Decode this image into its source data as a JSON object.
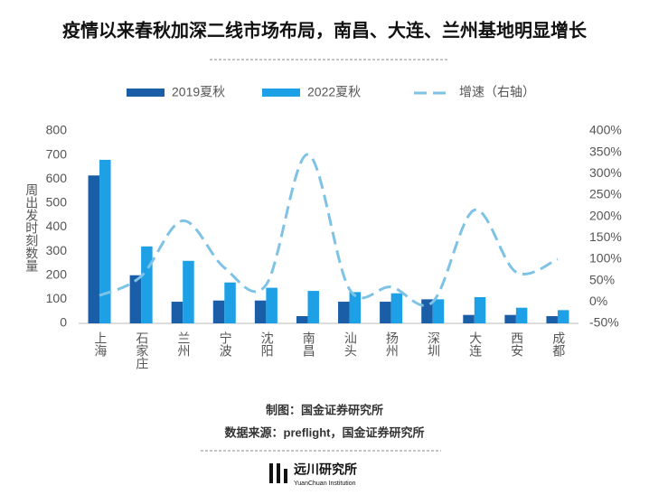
{
  "chart_data": {
    "type": "bar",
    "title": "疫情以来春秋加深二线市场布局，南昌、大连、兰州基地明显增长",
    "y_label": "周出发时刻数量",
    "categories": [
      "上海",
      "石家庄",
      "兰州",
      "宁波",
      "沈阳",
      "南昌",
      "汕头",
      "扬州",
      "深圳",
      "大连",
      "西安",
      "成都"
    ],
    "series": [
      {
        "name": "2019夏秋",
        "type": "bar",
        "color": "#1a5ea8",
        "values": [
          615,
          200,
          90,
          95,
          95,
          30,
          90,
          90,
          100,
          35,
          35,
          30
        ]
      },
      {
        "name": "2022夏秋",
        "type": "bar",
        "color": "#1ea0e6",
        "values": [
          680,
          320,
          260,
          170,
          148,
          135,
          130,
          125,
          100,
          109,
          65,
          55
        ]
      },
      {
        "name": "增速（右轴）",
        "type": "line",
        "axis": "y2",
        "color": "#7ec3e6",
        "values": [
          15,
          60,
          190,
          80,
          40,
          345,
          30,
          35,
          0,
          215,
          70,
          100
        ]
      }
    ],
    "ylim": [
      0,
      800
    ],
    "yticks": [
      0,
      100,
      200,
      300,
      400,
      500,
      600,
      700,
      800
    ],
    "y2lim": [
      -50,
      400
    ],
    "y2ticks": [
      {
        "value": -50,
        "label": "-50%"
      },
      {
        "value": 0,
        "label": "0%"
      },
      {
        "value": 50,
        "label": "50%"
      },
      {
        "value": 100,
        "label": "100%"
      },
      {
        "value": 150,
        "label": "150%"
      },
      {
        "value": 200,
        "label": "200%"
      },
      {
        "value": 250,
        "label": "250%"
      },
      {
        "value": 300,
        "label": "300%"
      },
      {
        "value": 350,
        "label": "350%"
      },
      {
        "value": 400,
        "label": "400%"
      }
    ],
    "grid": false,
    "legend": "top",
    "footer": {
      "maker": "制图：国金证券研究所",
      "source": "数据来源：preflight，国金证券研究所",
      "logo": "远川研究所",
      "logo_sub": "YuanChuan Institution"
    }
  }
}
